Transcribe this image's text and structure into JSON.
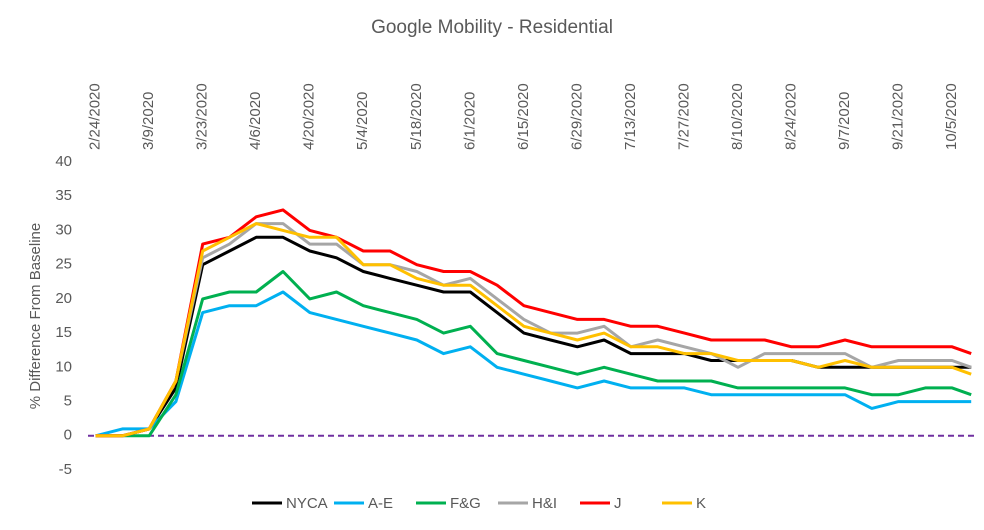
{
  "chart_data": {
    "type": "line",
    "title": "Google Mobility - Residential",
    "y_label": "% Difference From Baseline",
    "x": [
      "2/24/2020",
      "3/2/2020",
      "3/9/2020",
      "3/16/2020",
      "3/23/2020",
      "3/30/2020",
      "4/6/2020",
      "4/13/2020",
      "4/20/2020",
      "4/27/2020",
      "5/4/2020",
      "5/11/2020",
      "5/18/2020",
      "5/25/2020",
      "6/1/2020",
      "6/8/2020",
      "6/15/2020",
      "6/22/2020",
      "6/29/2020",
      "7/6/2020",
      "7/13/2020",
      "7/20/2020",
      "7/27/2020",
      "8/3/2020",
      "8/10/2020",
      "8/17/2020",
      "8/24/2020",
      "8/31/2020",
      "9/7/2020",
      "9/14/2020",
      "9/21/2020",
      "9/28/2020",
      "10/5/2020",
      "10/10/2020"
    ],
    "series": [
      {
        "name": "NYCA",
        "color": "#000000",
        "values": [
          0,
          0,
          1,
          7,
          25,
          27,
          29,
          29,
          27,
          26,
          24,
          23,
          22,
          21,
          21,
          18,
          15,
          14,
          13,
          14,
          12,
          12,
          12,
          11,
          11,
          11,
          11,
          10,
          10,
          10,
          10,
          10,
          10,
          10
        ]
      },
      {
        "name": "A-E",
        "color": "#00b0f0",
        "values": [
          0,
          1,
          1,
          5,
          18,
          19,
          19,
          21,
          18,
          17,
          16,
          15,
          14,
          12,
          13,
          10,
          9,
          8,
          7,
          8,
          7,
          7,
          7,
          6,
          6,
          6,
          6,
          6,
          6,
          4,
          5,
          5,
          5,
          5
        ]
      },
      {
        "name": "F&G",
        "color": "#00b050",
        "values": [
          0,
          0,
          0,
          6,
          20,
          21,
          21,
          24,
          20,
          21,
          19,
          18,
          17,
          15,
          16,
          12,
          11,
          10,
          9,
          10,
          9,
          8,
          8,
          8,
          7,
          7,
          7,
          7,
          7,
          6,
          6,
          7,
          7,
          6
        ]
      },
      {
        "name": "H&I",
        "color": "#a6a6a6",
        "values": [
          0,
          0,
          1,
          8,
          26,
          28,
          31,
          31,
          28,
          28,
          25,
          25,
          24,
          22,
          23,
          20,
          17,
          15,
          15,
          16,
          13,
          14,
          13,
          12,
          10,
          12,
          12,
          12,
          12,
          10,
          11,
          11,
          11,
          10
        ]
      },
      {
        "name": "J",
        "color": "#ff0000",
        "values": [
          0,
          0,
          1,
          8,
          28,
          29,
          32,
          33,
          30,
          29,
          27,
          27,
          25,
          24,
          24,
          22,
          19,
          18,
          17,
          17,
          16,
          16,
          15,
          14,
          14,
          14,
          13,
          13,
          14,
          13,
          13,
          13,
          13,
          12
        ]
      },
      {
        "name": "K",
        "color": "#ffc000",
        "values": [
          0,
          0,
          1,
          8,
          27,
          29,
          31,
          30,
          29,
          29,
          25,
          25,
          23,
          22,
          22,
          19,
          16,
          15,
          14,
          15,
          13,
          13,
          12,
          12,
          11,
          11,
          11,
          10,
          11,
          10,
          10,
          10,
          10,
          9
        ]
      }
    ],
    "xlim": [
      "2/22/2020",
      "10/11/2020"
    ],
    "xticks": [
      "2/24/2020",
      "3/9/2020",
      "3/23/2020",
      "4/6/2020",
      "4/20/2020",
      "5/4/2020",
      "5/18/2020",
      "6/1/2020",
      "6/15/2020",
      "6/29/2020",
      "7/13/2020",
      "7/27/2020",
      "8/10/2020",
      "8/24/2020",
      "9/7/2020",
      "9/21/2020",
      "10/5/2020"
    ],
    "ylim": [
      -5,
      40
    ],
    "yticks": [
      -5,
      0,
      5,
      10,
      15,
      20,
      25,
      30,
      35,
      40
    ],
    "reference_line": {
      "value": 0,
      "color": "#7030a0"
    },
    "legend": "bottom"
  }
}
